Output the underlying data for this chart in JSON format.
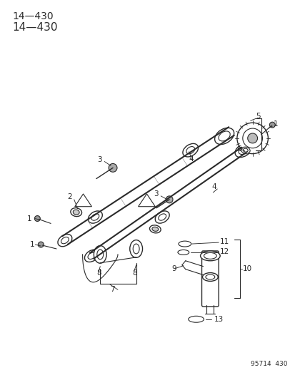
{
  "title": "14—430",
  "page_number": "95714  430",
  "background_color": "#ffffff",
  "line_color": "#2a2a2a",
  "text_color": "#2a2a2a",
  "title_fontsize": 11,
  "label_fontsize": 7.5,
  "figsize": [
    4.14,
    5.33
  ],
  "dpi": 100
}
